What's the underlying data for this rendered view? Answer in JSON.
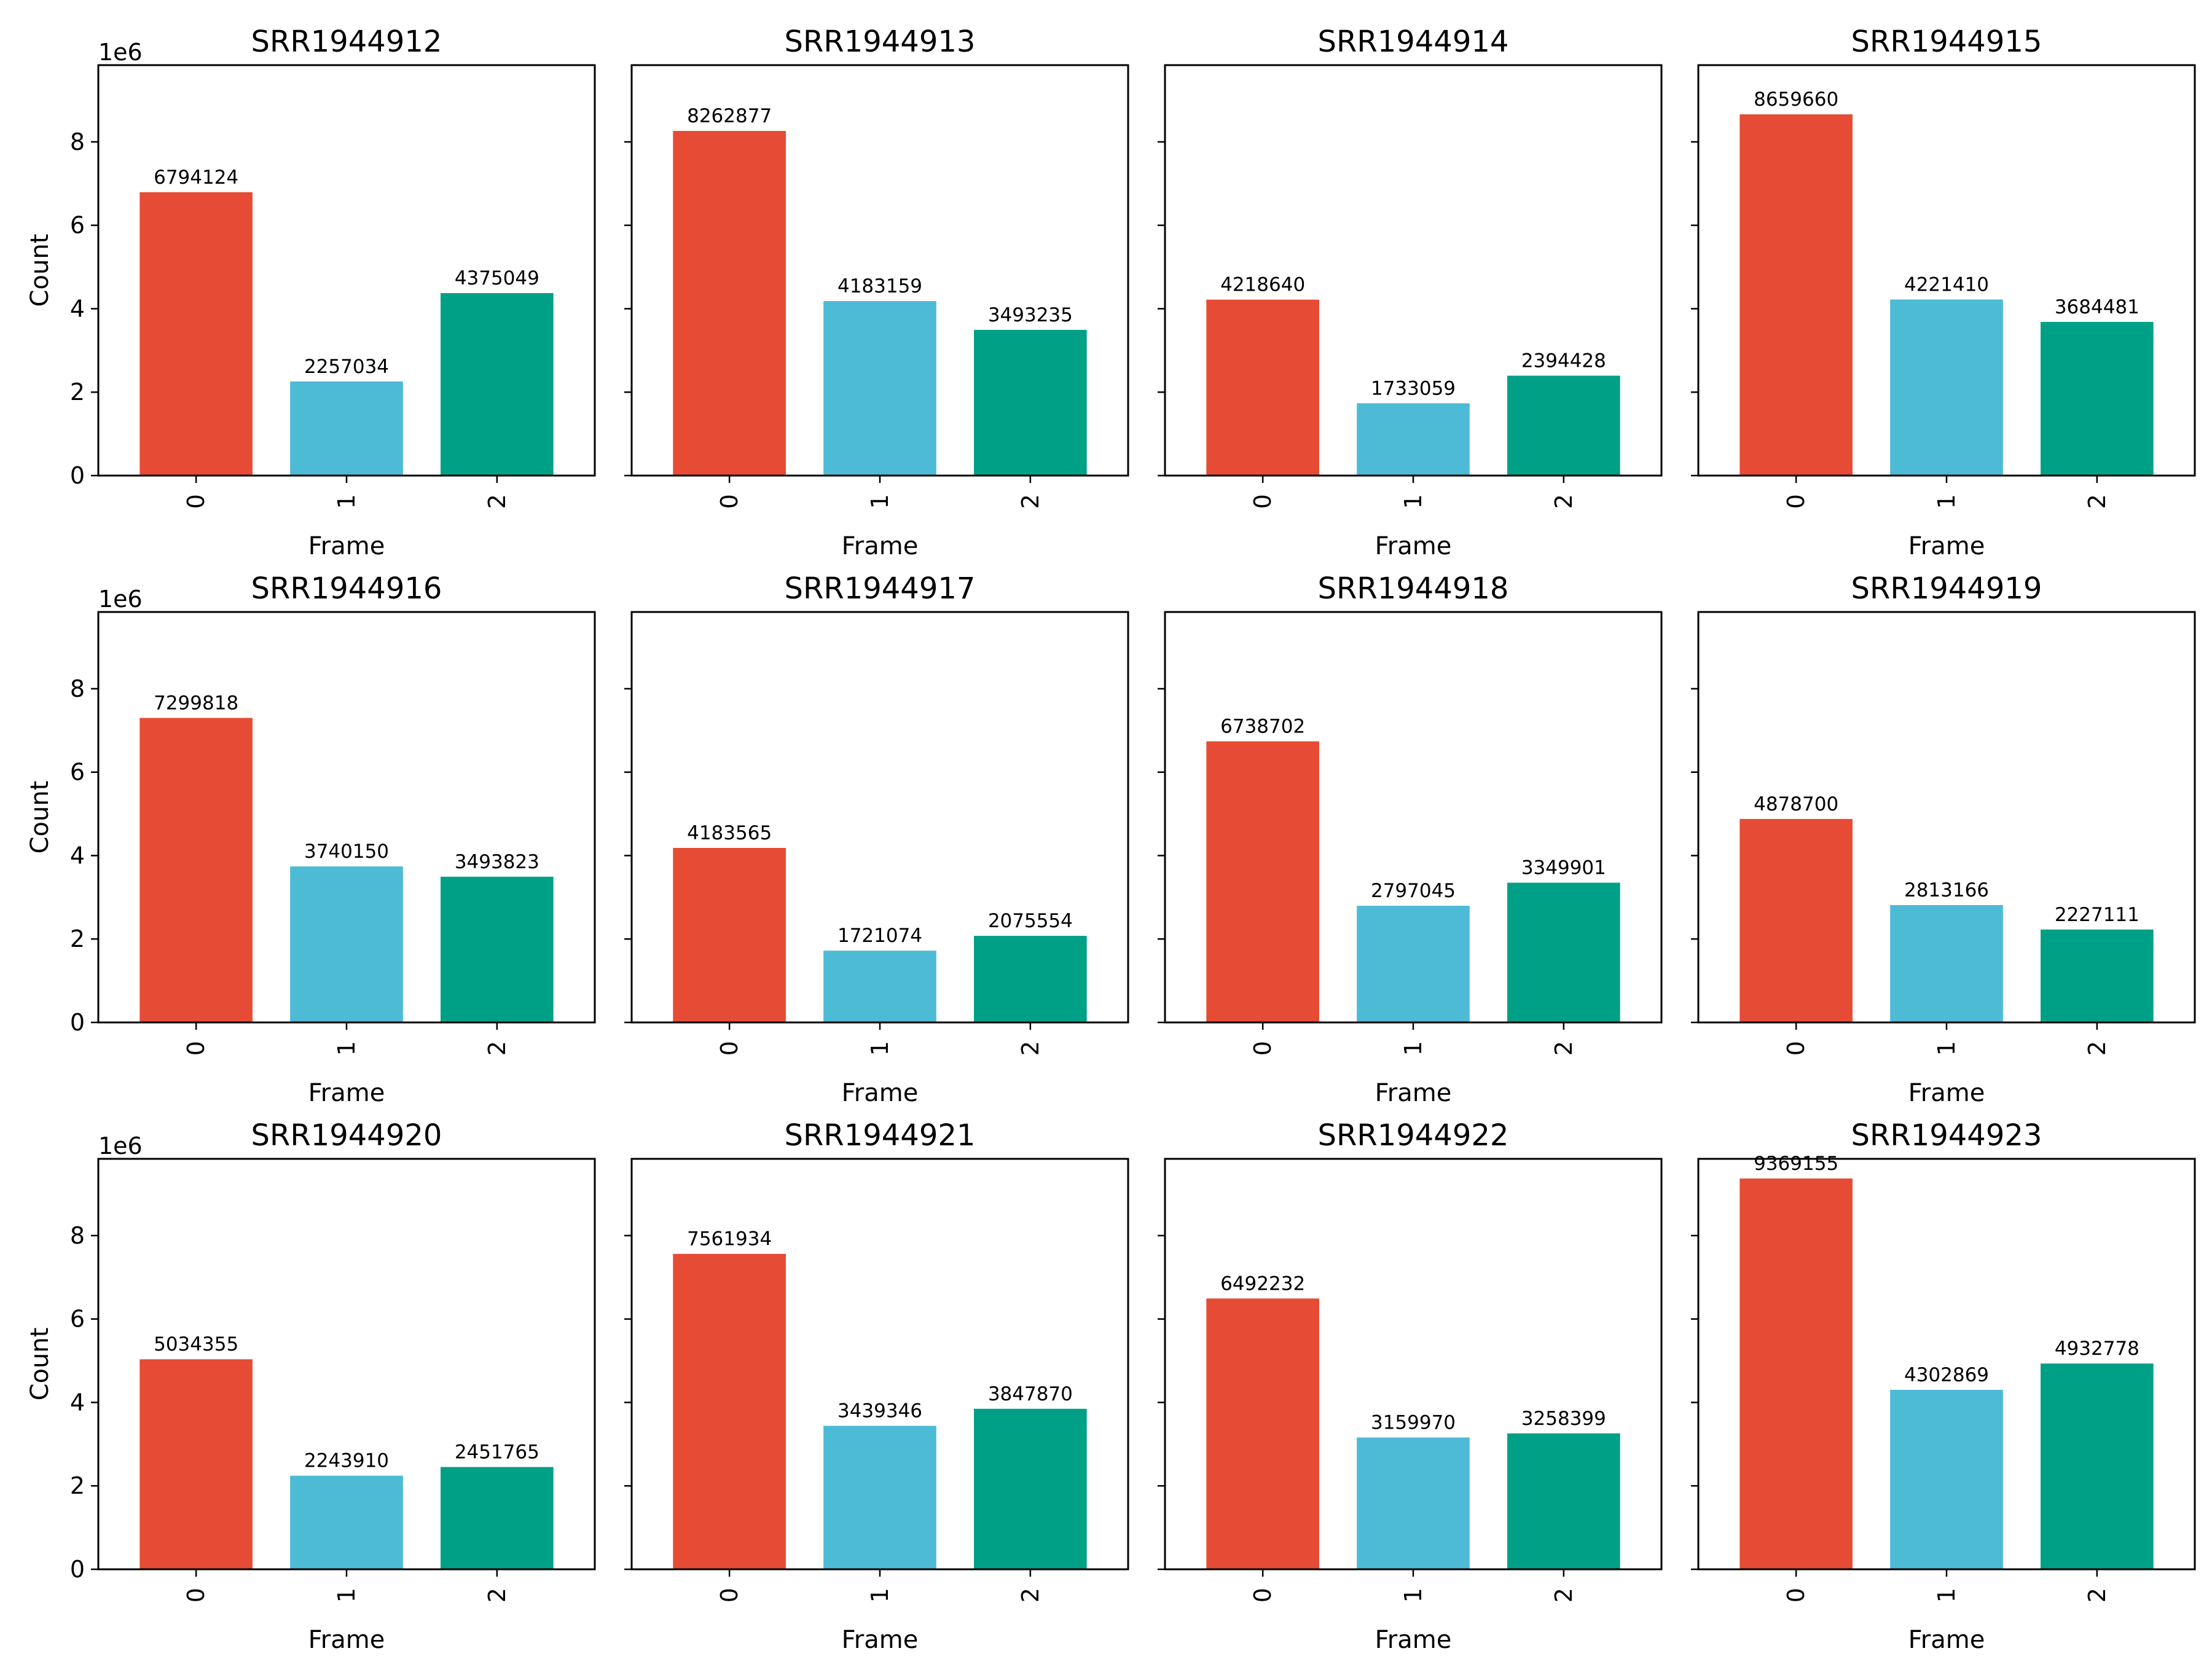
{
  "chart_data": {
    "type": "bar",
    "layout": "grid",
    "grid": {
      "rows": 3,
      "cols": 4
    },
    "sharey": true,
    "colors": [
      "#E64B35",
      "#4DBBD5",
      "#00A087"
    ],
    "xlabel": "Frame",
    "ylabel": "Count",
    "y_offset_text": "1e6",
    "y_ticks": [
      0,
      2,
      4,
      6,
      8
    ],
    "ylim": [
      0,
      9840000
    ],
    "ytick_scale": 1000000,
    "panels": [
      {
        "title": "SRR1944912",
        "categories": [
          "0",
          "1",
          "2"
        ],
        "values": [
          6794124,
          2257034,
          4375049
        ]
      },
      {
        "title": "SRR1944913",
        "categories": [
          "0",
          "1",
          "2"
        ],
        "values": [
          8262877,
          4183159,
          3493235
        ]
      },
      {
        "title": "SRR1944914",
        "categories": [
          "0",
          "1",
          "2"
        ],
        "values": [
          4218640,
          1733059,
          2394428
        ]
      },
      {
        "title": "SRR1944915",
        "categories": [
          "0",
          "1",
          "2"
        ],
        "values": [
          8659660,
          4221410,
          3684481
        ]
      },
      {
        "title": "SRR1944916",
        "categories": [
          "0",
          "1",
          "2"
        ],
        "values": [
          7299818,
          3740150,
          3493823
        ]
      },
      {
        "title": "SRR1944917",
        "categories": [
          "0",
          "1",
          "2"
        ],
        "values": [
          4183565,
          1721074,
          2075554
        ]
      },
      {
        "title": "SRR1944918",
        "categories": [
          "0",
          "1",
          "2"
        ],
        "values": [
          6738702,
          2797045,
          3349901
        ]
      },
      {
        "title": "SRR1944919",
        "categories": [
          "0",
          "1",
          "2"
        ],
        "values": [
          4878700,
          2813166,
          2227111
        ]
      },
      {
        "title": "SRR1944920",
        "categories": [
          "0",
          "1",
          "2"
        ],
        "values": [
          5034355,
          2243910,
          2451765
        ]
      },
      {
        "title": "SRR1944921",
        "categories": [
          "0",
          "1",
          "2"
        ],
        "values": [
          7561934,
          3439346,
          3847870
        ]
      },
      {
        "title": "SRR1944922",
        "categories": [
          "0",
          "1",
          "2"
        ],
        "values": [
          6492232,
          3159970,
          3258399
        ]
      },
      {
        "title": "SRR1944923",
        "categories": [
          "0",
          "1",
          "2"
        ],
        "values": [
          9369155,
          4302869,
          4932778
        ]
      }
    ]
  }
}
